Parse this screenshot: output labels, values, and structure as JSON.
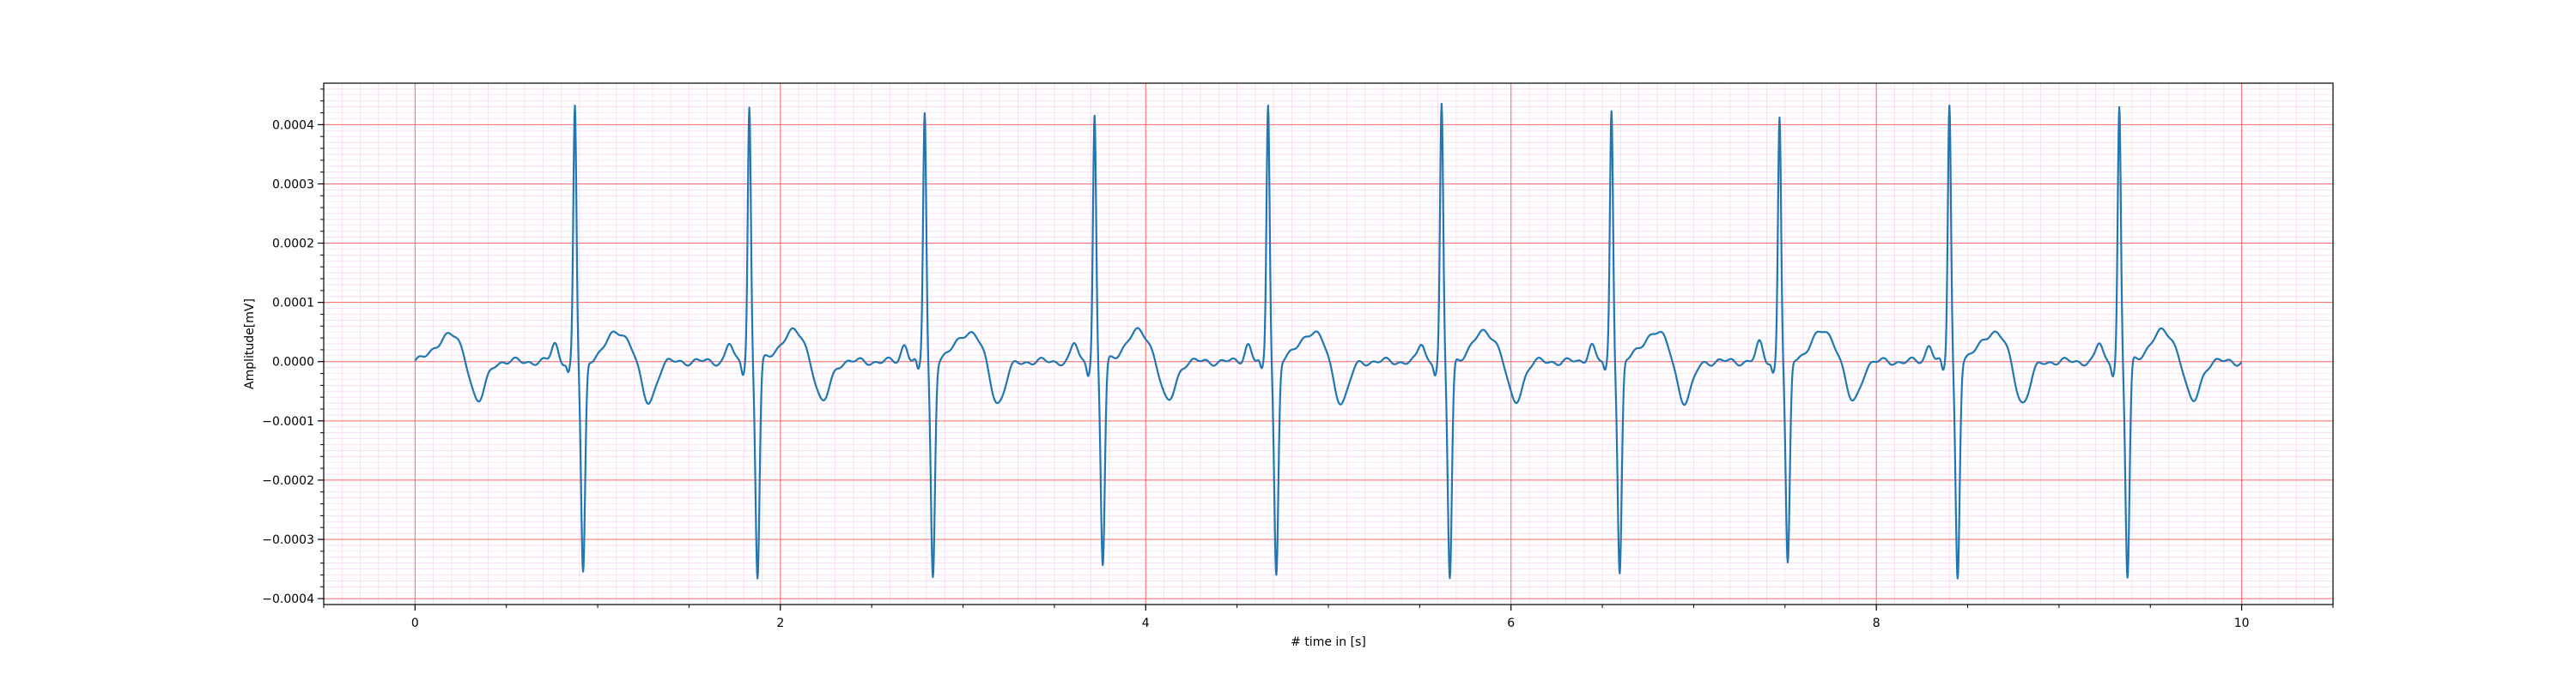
{
  "chart_data": {
    "type": "line",
    "title": "",
    "xlabel": "# time in [s]",
    "ylabel": "Amplitude[mV]",
    "xlim": [
      -0.5,
      10.5
    ],
    "ylim": [
      -0.00041,
      0.00047
    ],
    "x_ticks": [
      0,
      2,
      4,
      6,
      8,
      10
    ],
    "x_tick_labels": [
      "0",
      "2",
      "4",
      "6",
      "8",
      "10"
    ],
    "y_ticks": [
      -0.0004,
      -0.0003,
      -0.0002,
      -0.0001,
      0.0,
      0.0001,
      0.0002,
      0.0003,
      0.0004
    ],
    "y_tick_labels": [
      "−0.0004",
      "−0.0003",
      "−0.0002",
      "−0.0001",
      "0.0000",
      "0.0001",
      "0.0002",
      "0.0003",
      "0.0004"
    ],
    "grid": {
      "major": true,
      "minor": true,
      "major_color": "#ff6666",
      "minor_color": "#f7d4ef"
    },
    "line_color": "#1f77b4",
    "beats": [
      {
        "r": 0.875,
        "r_peak": 0.00043,
        "s_trough": -0.00036
      },
      {
        "r": 1.83,
        "r_peak": 0.00043,
        "s_trough": -0.000365
      },
      {
        "r": 2.79,
        "r_peak": 0.00042,
        "s_trough": -0.000362
      },
      {
        "r": 3.72,
        "r_peak": 0.000415,
        "s_trough": -0.000345
      },
      {
        "r": 4.67,
        "r_peak": 0.000435,
        "s_trough": -0.00036
      },
      {
        "r": 5.62,
        "r_peak": 0.00043,
        "s_trough": -0.000367
      },
      {
        "r": 6.55,
        "r_peak": 0.000425,
        "s_trough": -0.000357
      },
      {
        "r": 7.47,
        "r_peak": 0.000415,
        "s_trough": -0.000347
      },
      {
        "r": 8.4,
        "r_peak": 0.000432,
        "s_trough": -0.000362
      },
      {
        "r": 9.33,
        "r_peak": 0.000428,
        "s_trough": -0.000367
      }
    ],
    "series": [
      {
        "x_range": [
          0,
          10
        ],
        "description_values": "ECG: baseline ~0, T-wave ~+0.00005 at ~0.25s after R, dip ~-0.00007, P-wave ~+0.00003 before R"
      }
    ]
  }
}
